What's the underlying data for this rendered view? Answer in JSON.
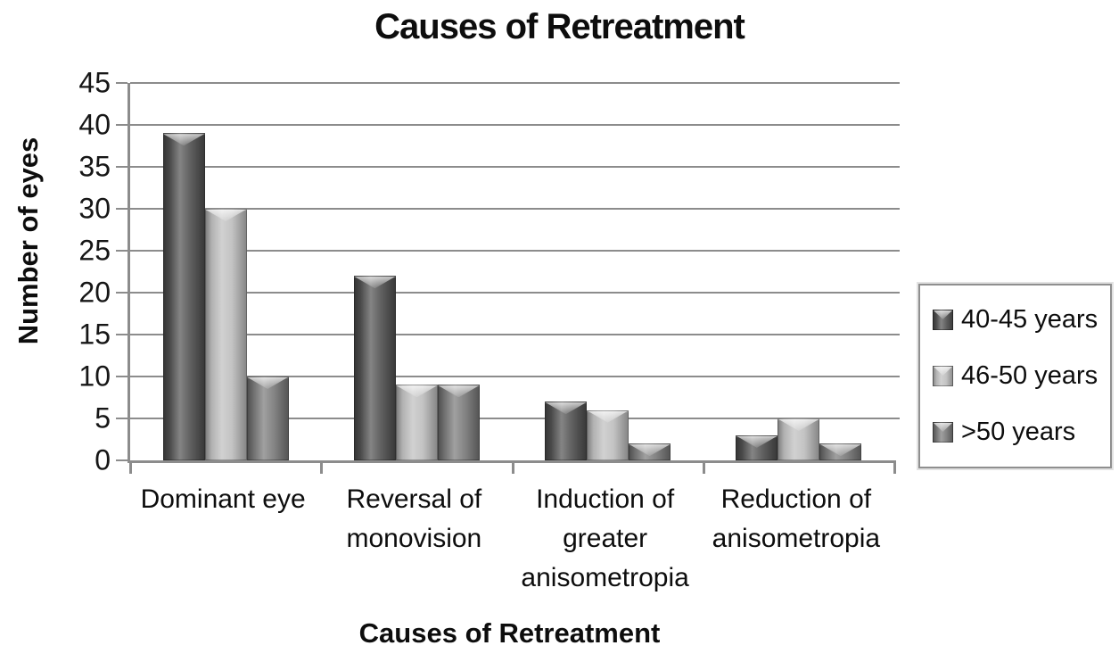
{
  "chart_data": {
    "type": "bar",
    "title": "Causes of Retreatment",
    "xlabel": "Causes of Retreatment",
    "ylabel": "Number of eyes",
    "ylim": [
      0,
      45
    ],
    "ytick_step": 5,
    "grid": true,
    "legend_position": "right",
    "categories": [
      "Dominant eye",
      "Reversal of monovision",
      "Induction of greater anisometropia",
      "Reduction of anisometropia"
    ],
    "categories_wrapped": [
      [
        "Dominant eye"
      ],
      [
        "Reversal of",
        "monovision"
      ],
      [
        "Induction of",
        "greater",
        "anisometropia"
      ],
      [
        "Reduction of",
        "anisometropia"
      ]
    ],
    "series": [
      {
        "name": "40-45 years",
        "color": "#4f4f4f",
        "values": [
          39,
          22,
          7,
          3
        ]
      },
      {
        "name": "46-50 years",
        "color": "#bdbdbd",
        "values": [
          30,
          9,
          6,
          5
        ]
      },
      {
        "name": ">50 years",
        "color": "#777777",
        "values": [
          10,
          9,
          2,
          2
        ]
      }
    ]
  },
  "colors": {
    "gridline": "#8c8c8c",
    "axis": "#8c8c8c",
    "text": "#111111",
    "legend_border": "#8f8f8f",
    "background": "#ffffff"
  }
}
